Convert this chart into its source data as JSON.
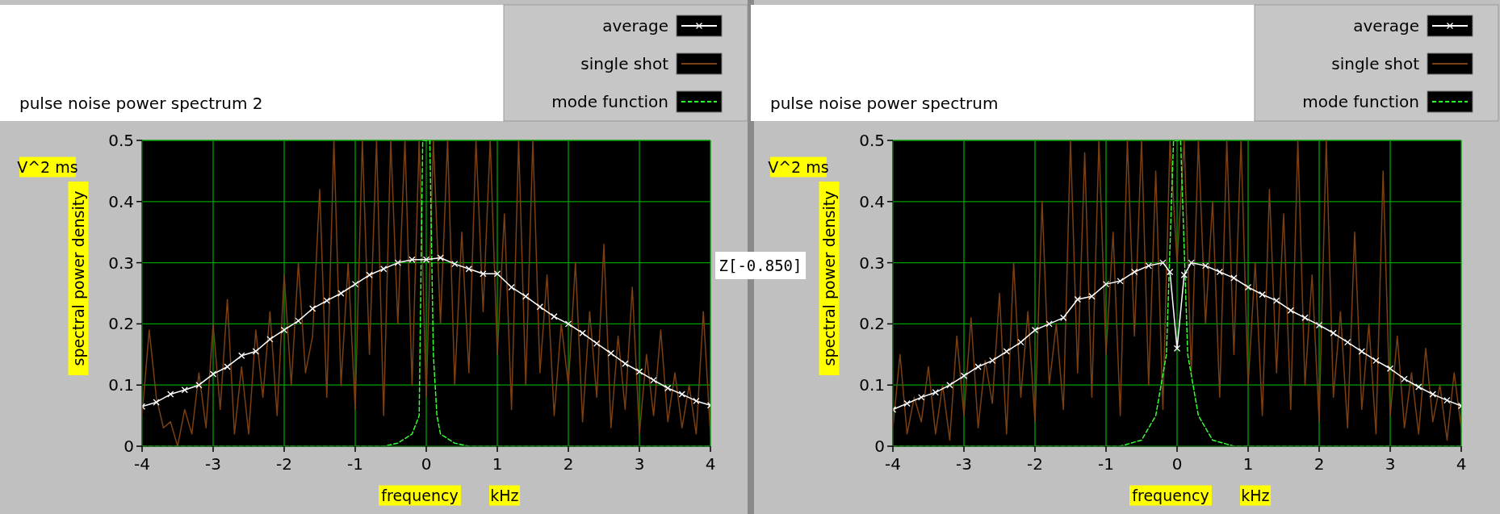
{
  "chart_data": [
    {
      "type": "line",
      "title": "pulse noise power spectrum 2",
      "xlabel": "frequency",
      "ylabel": "spectral power density",
      "annotations": [
        "V^2 ms",
        "kHz",
        "Z[-0.850]"
      ],
      "xlim": [
        -4,
        4
      ],
      "ylim": [
        0,
        0.5
      ],
      "xticks": [
        -4,
        -3,
        -2,
        -1,
        0,
        1,
        2,
        3,
        4
      ],
      "yticks": [
        0,
        0.1,
        0.2,
        0.3,
        0.4,
        0.5
      ],
      "grid": true,
      "legend": "top right",
      "series": [
        {
          "name": "average",
          "color": "#ffffff",
          "marker": "cross",
          "line_style": "solid",
          "x": [
            -4,
            -3.8,
            -3.6,
            -3.4,
            -3.2,
            -3,
            -2.8,
            -2.6,
            -2.4,
            -2.2,
            -2,
            -1.8,
            -1.6,
            -1.4,
            -1.2,
            -1,
            -0.8,
            -0.6,
            -0.4,
            -0.2,
            0,
            0.2,
            0.4,
            0.6,
            0.8,
            1,
            1.2,
            1.4,
            1.6,
            1.8,
            2,
            2.2,
            2.4,
            2.6,
            2.8,
            3,
            3.2,
            3.4,
            3.6,
            3.8,
            4
          ],
          "values": [
            0.065,
            0.072,
            0.085,
            0.092,
            0.1,
            0.118,
            0.13,
            0.148,
            0.155,
            0.175,
            0.19,
            0.205,
            0.225,
            0.238,
            0.25,
            0.265,
            0.28,
            0.29,
            0.3,
            0.305,
            0.305,
            0.308,
            0.298,
            0.29,
            0.282,
            0.282,
            0.26,
            0.245,
            0.228,
            0.212,
            0.2,
            0.185,
            0.168,
            0.152,
            0.135,
            0.122,
            0.108,
            0.095,
            0.085,
            0.074,
            0.067
          ]
        },
        {
          "name": "single shot",
          "color": "#7a3f12",
          "marker": "none",
          "line_style": "solid",
          "x": [
            -4,
            -3.9,
            -3.8,
            -3.7,
            -3.6,
            -3.5,
            -3.4,
            -3.3,
            -3.2,
            -3.1,
            -3,
            -2.9,
            -2.8,
            -2.7,
            -2.6,
            -2.5,
            -2.4,
            -2.3,
            -2.2,
            -2.1,
            -2,
            -1.9,
            -1.8,
            -1.7,
            -1.6,
            -1.5,
            -1.4,
            -1.3,
            -1.2,
            -1.1,
            -1,
            -0.9,
            -0.8,
            -0.7,
            -0.6,
            -0.5,
            -0.4,
            -0.3,
            -0.2,
            -0.1,
            0,
            0.1,
            0.2,
            0.3,
            0.4,
            0.5,
            0.6,
            0.7,
            0.8,
            0.9,
            1,
            1.1,
            1.2,
            1.3,
            1.4,
            1.5,
            1.6,
            1.7,
            1.8,
            1.9,
            2,
            2.1,
            2.2,
            2.3,
            2.4,
            2.5,
            2.6,
            2.7,
            2.8,
            2.9,
            3,
            3.1,
            3.2,
            3.3,
            3.4,
            3.5,
            3.6,
            3.7,
            3.8,
            3.9,
            4
          ],
          "values": [
            0.05,
            0.19,
            0.08,
            0.03,
            0.04,
            0,
            0.06,
            0.02,
            0.12,
            0.03,
            0.2,
            0.06,
            0.24,
            0.02,
            0.13,
            0.02,
            0.19,
            0.08,
            0.22,
            0.05,
            0.28,
            0.1,
            0.3,
            0.12,
            0.18,
            0.42,
            0.08,
            0.5,
            0.1,
            0.3,
            0.06,
            0.5,
            0.15,
            0.5,
            0.05,
            0.5,
            0.2,
            0.5,
            0.1,
            0.5,
            0.08,
            0.5,
            0.2,
            0.5,
            0.1,
            0.35,
            0.12,
            0.5,
            0.22,
            0.5,
            0.15,
            0.38,
            0.06,
            0.5,
            0.1,
            0.5,
            0.12,
            0.28,
            0.05,
            0.2,
            0.1,
            0.3,
            0.04,
            0.22,
            0.08,
            0.33,
            0.03,
            0.18,
            0.06,
            0.26,
            0.02,
            0.15,
            0.05,
            0.19,
            0.04,
            0.12,
            0.03,
            0.1,
            0.02,
            0.22,
            0.02
          ]
        },
        {
          "name": "mode function",
          "color": "#33ff33",
          "marker": "none",
          "line_style": "dashed",
          "x": [
            -4,
            -0.6,
            -0.4,
            -0.2,
            -0.1,
            -0.05,
            0,
            0.05,
            0.1,
            0.15,
            0.2,
            0.4,
            0.6,
            4
          ],
          "values": [
            0,
            0,
            0.005,
            0.02,
            0.05,
            0.5,
            0.5,
            0.5,
            0.15,
            0.05,
            0.02,
            0.005,
            0,
            0
          ]
        }
      ]
    },
    {
      "type": "line",
      "title": "pulse noise power spectrum",
      "xlabel": "frequency",
      "ylabel": "spectral power density",
      "annotations": [
        "V^2 ms",
        "kHz"
      ],
      "xlim": [
        -4,
        4
      ],
      "ylim": [
        0,
        0.5
      ],
      "xticks": [
        -4,
        -3,
        -2,
        -1,
        0,
        1,
        2,
        3,
        4
      ],
      "yticks": [
        0,
        0.1,
        0.2,
        0.3,
        0.4,
        0.5
      ],
      "grid": true,
      "legend": "top right",
      "series": [
        {
          "name": "average",
          "color": "#ffffff",
          "marker": "cross",
          "line_style": "solid",
          "x": [
            -4,
            -3.8,
            -3.6,
            -3.4,
            -3.2,
            -3,
            -2.8,
            -2.6,
            -2.4,
            -2.2,
            -2,
            -1.8,
            -1.6,
            -1.4,
            -1.2,
            -1,
            -0.8,
            -0.6,
            -0.4,
            -0.2,
            -0.1,
            0,
            0.1,
            0.2,
            0.4,
            0.6,
            0.8,
            1,
            1.2,
            1.4,
            1.6,
            1.8,
            2,
            2.2,
            2.4,
            2.6,
            2.8,
            3,
            3.2,
            3.4,
            3.6,
            3.8,
            4
          ],
          "values": [
            0.06,
            0.07,
            0.08,
            0.088,
            0.1,
            0.115,
            0.13,
            0.14,
            0.155,
            0.17,
            0.19,
            0.2,
            0.21,
            0.24,
            0.245,
            0.265,
            0.27,
            0.285,
            0.295,
            0.3,
            0.285,
            0.16,
            0.28,
            0.3,
            0.295,
            0.285,
            0.275,
            0.26,
            0.248,
            0.238,
            0.222,
            0.21,
            0.198,
            0.185,
            0.17,
            0.155,
            0.14,
            0.127,
            0.11,
            0.097,
            0.085,
            0.075,
            0.066
          ]
        },
        {
          "name": "single shot",
          "color": "#7a3f12",
          "marker": "none",
          "line_style": "solid",
          "x": [
            -4,
            -3.9,
            -3.8,
            -3.7,
            -3.6,
            -3.5,
            -3.4,
            -3.3,
            -3.2,
            -3.1,
            -3,
            -2.9,
            -2.8,
            -2.7,
            -2.6,
            -2.5,
            -2.4,
            -2.3,
            -2.2,
            -2.1,
            -2,
            -1.9,
            -1.8,
            -1.7,
            -1.6,
            -1.5,
            -1.4,
            -1.3,
            -1.2,
            -1.1,
            -1,
            -0.9,
            -0.8,
            -0.7,
            -0.6,
            -0.5,
            -0.4,
            -0.3,
            -0.2,
            -0.1,
            0,
            0.1,
            0.2,
            0.3,
            0.4,
            0.5,
            0.6,
            0.7,
            0.8,
            0.9,
            1,
            1.1,
            1.2,
            1.3,
            1.4,
            1.5,
            1.6,
            1.7,
            1.8,
            1.9,
            2,
            2.1,
            2.2,
            2.3,
            2.4,
            2.5,
            2.6,
            2.7,
            2.8,
            2.9,
            3,
            3.1,
            3.2,
            3.3,
            3.4,
            3.5,
            3.6,
            3.7,
            3.8,
            3.9,
            4
          ],
          "values": [
            0.03,
            0.15,
            0.02,
            0.08,
            0.04,
            0.13,
            0.02,
            0.1,
            0.01,
            0.18,
            0.05,
            0.21,
            0.03,
            0.14,
            0.07,
            0.25,
            0.02,
            0.3,
            0.08,
            0.22,
            0.04,
            0.4,
            0.1,
            0.2,
            0.06,
            0.5,
            0.12,
            0.48,
            0.08,
            0.5,
            0.15,
            0.35,
            0.05,
            0.5,
            0.18,
            0.5,
            0.1,
            0.45,
            0.06,
            0.5,
            0.3,
            0.5,
            0.12,
            0.5,
            0.2,
            0.4,
            0.08,
            0.5,
            0.15,
            0.5,
            0.1,
            0.3,
            0.05,
            0.42,
            0.12,
            0.38,
            0.06,
            0.5,
            0.1,
            0.28,
            0.04,
            0.5,
            0.08,
            0.22,
            0.03,
            0.35,
            0.06,
            0.2,
            0.02,
            0.45,
            0.05,
            0.18,
            0.03,
            0.12,
            0.02,
            0.16,
            0.04,
            0.1,
            0.01,
            0.12,
            0.03
          ]
        },
        {
          "name": "mode function",
          "color": "#33ff33",
          "marker": "none",
          "line_style": "dashed",
          "x": [
            -4,
            -0.8,
            -0.5,
            -0.3,
            -0.15,
            -0.05,
            0,
            0.05,
            0.15,
            0.3,
            0.5,
            0.8,
            4
          ],
          "values": [
            0,
            0,
            0.01,
            0.05,
            0.15,
            0.5,
            0.5,
            0.5,
            0.15,
            0.05,
            0.01,
            0,
            0
          ]
        }
      ]
    }
  ]
}
